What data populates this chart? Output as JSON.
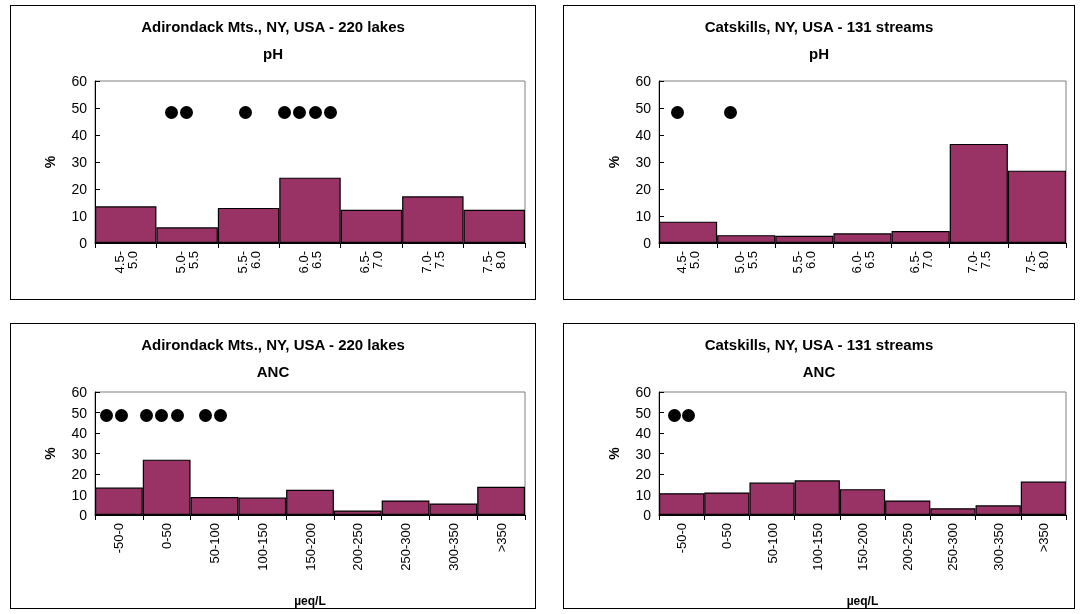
{
  "chart_data": [
    {
      "type": "bar",
      "title": "Adirondack Mts., NY, USA - 220 lakes",
      "subtitle": "pH",
      "ylabel": "%",
      "categories": [
        "4.5- 5.0",
        "5.0- 5.5",
        "5.5- 6.0",
        "6.0- 6.5",
        "6.5- 7.0",
        "7.0- 7.5",
        "7.5- 8.0"
      ],
      "values": [
        13.6,
        5.8,
        13,
        24.2,
        12.3,
        17.3,
        12.3
      ],
      "color": "#993366",
      "ylim": [
        0,
        60
      ],
      "yticks": [
        0,
        10,
        20,
        30,
        40,
        50,
        60
      ]
    },
    {
      "type": "bar",
      "title": "Catskills, NY, USA - 131 streams",
      "subtitle": "pH",
      "ylabel": "%",
      "categories": [
        "4.5- 5.0",
        "5.0- 5.5",
        "5.5- 6.0",
        "6.0- 6.5",
        "6.5- 7.0",
        "7.0- 7.5",
        "7.5- 8.0"
      ],
      "values": [
        7.9,
        2.9,
        2.7,
        3.6,
        4.4,
        36.7,
        26.8
      ],
      "color": "#993366",
      "ylim": [
        0,
        60
      ],
      "yticks": [
        0,
        10,
        20,
        30,
        40,
        50,
        60
      ]
    },
    {
      "type": "bar",
      "title": "Adirondack Mts., NY, USA - 220 lakes",
      "subtitle": "ANC",
      "ylabel": "%",
      "xlabel": "µeq/L",
      "categories": [
        "-50-0",
        "0-50",
        "50-100",
        "100-150",
        "150-200",
        "200-250",
        "250-300",
        "300-350",
        ">350"
      ],
      "values": [
        13.4,
        27,
        8.8,
        8.5,
        12.3,
        2.2,
        7.1,
        5.6,
        13.8
      ],
      "color": "#993366",
      "ylim": [
        0,
        60
      ],
      "yticks": [
        0,
        10,
        20,
        30,
        40,
        50,
        60
      ]
    },
    {
      "type": "bar",
      "title": "Catskills, NY, USA - 131 streams",
      "subtitle": "ANC",
      "ylabel": "%",
      "xlabel": "µeq/L",
      "categories": [
        "-50-0",
        "0-50",
        "50-100",
        "100-150",
        "150-200",
        "200-250",
        "250-300",
        "300-350",
        ">350"
      ],
      "values": [
        10.6,
        11,
        15.8,
        16.9,
        12.6,
        7.1,
        3.3,
        4.7,
        16.3
      ],
      "color": "#993366",
      "ylim": [
        0,
        60
      ],
      "yticks": [
        0,
        10,
        20,
        30,
        40,
        50,
        60
      ]
    }
  ]
}
